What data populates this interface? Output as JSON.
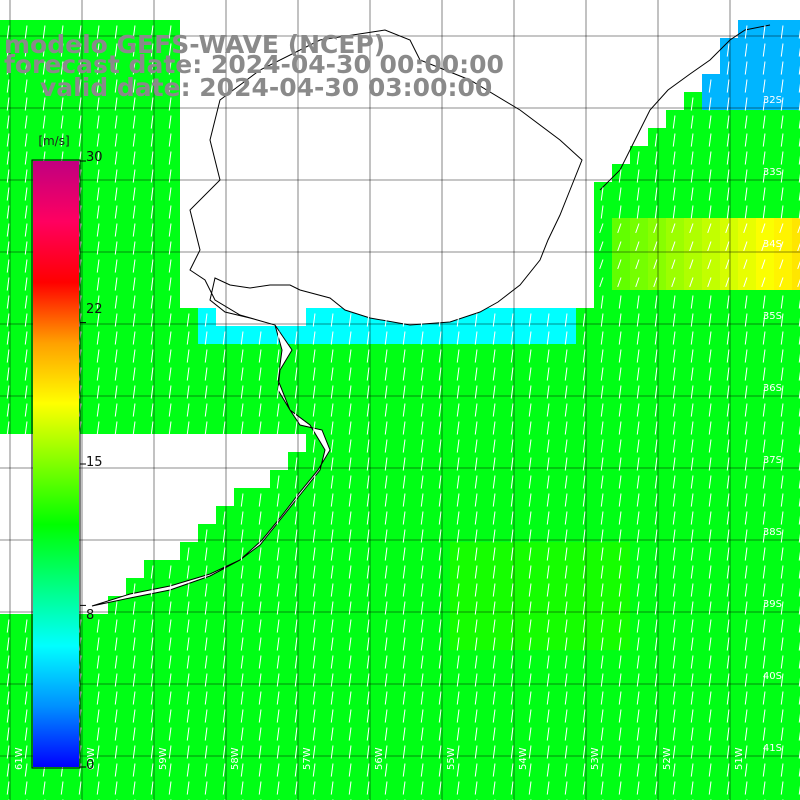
{
  "title": {
    "line1": "modelo GEFS-WAVE (NCEP)",
    "line2": "forecast date: 2024-04-30 00:00:00",
    "line3": "valid date: 2024-04-30 03:00:00"
  },
  "colorbar": {
    "unit": "[m/s]",
    "min": 0,
    "max": 30,
    "ticks": [
      "30",
      "22",
      "15",
      "8",
      "0"
    ],
    "tick_values": [
      30,
      22,
      15,
      8,
      0
    ],
    "colors": [
      "#0000ff",
      "#0090ff",
      "#00ffff",
      "#00ff80",
      "#00ff00",
      "#80ff00",
      "#ffff00",
      "#ffa000",
      "#ff0000",
      "#ff0060",
      "#c00080"
    ]
  },
  "map": {
    "land_color": "#ffffff",
    "coastline_color": "#000000",
    "grid": true,
    "lat_labels": [
      "32S",
      "33S",
      "34S",
      "35S",
      "36S",
      "37S",
      "38S",
      "39S",
      "40S",
      "41S"
    ],
    "lon_labels": [
      "61W",
      "60W",
      "59W",
      "58W",
      "57W",
      "56W",
      "55W",
      "54W",
      "53W",
      "52W",
      "51W"
    ]
  }
}
